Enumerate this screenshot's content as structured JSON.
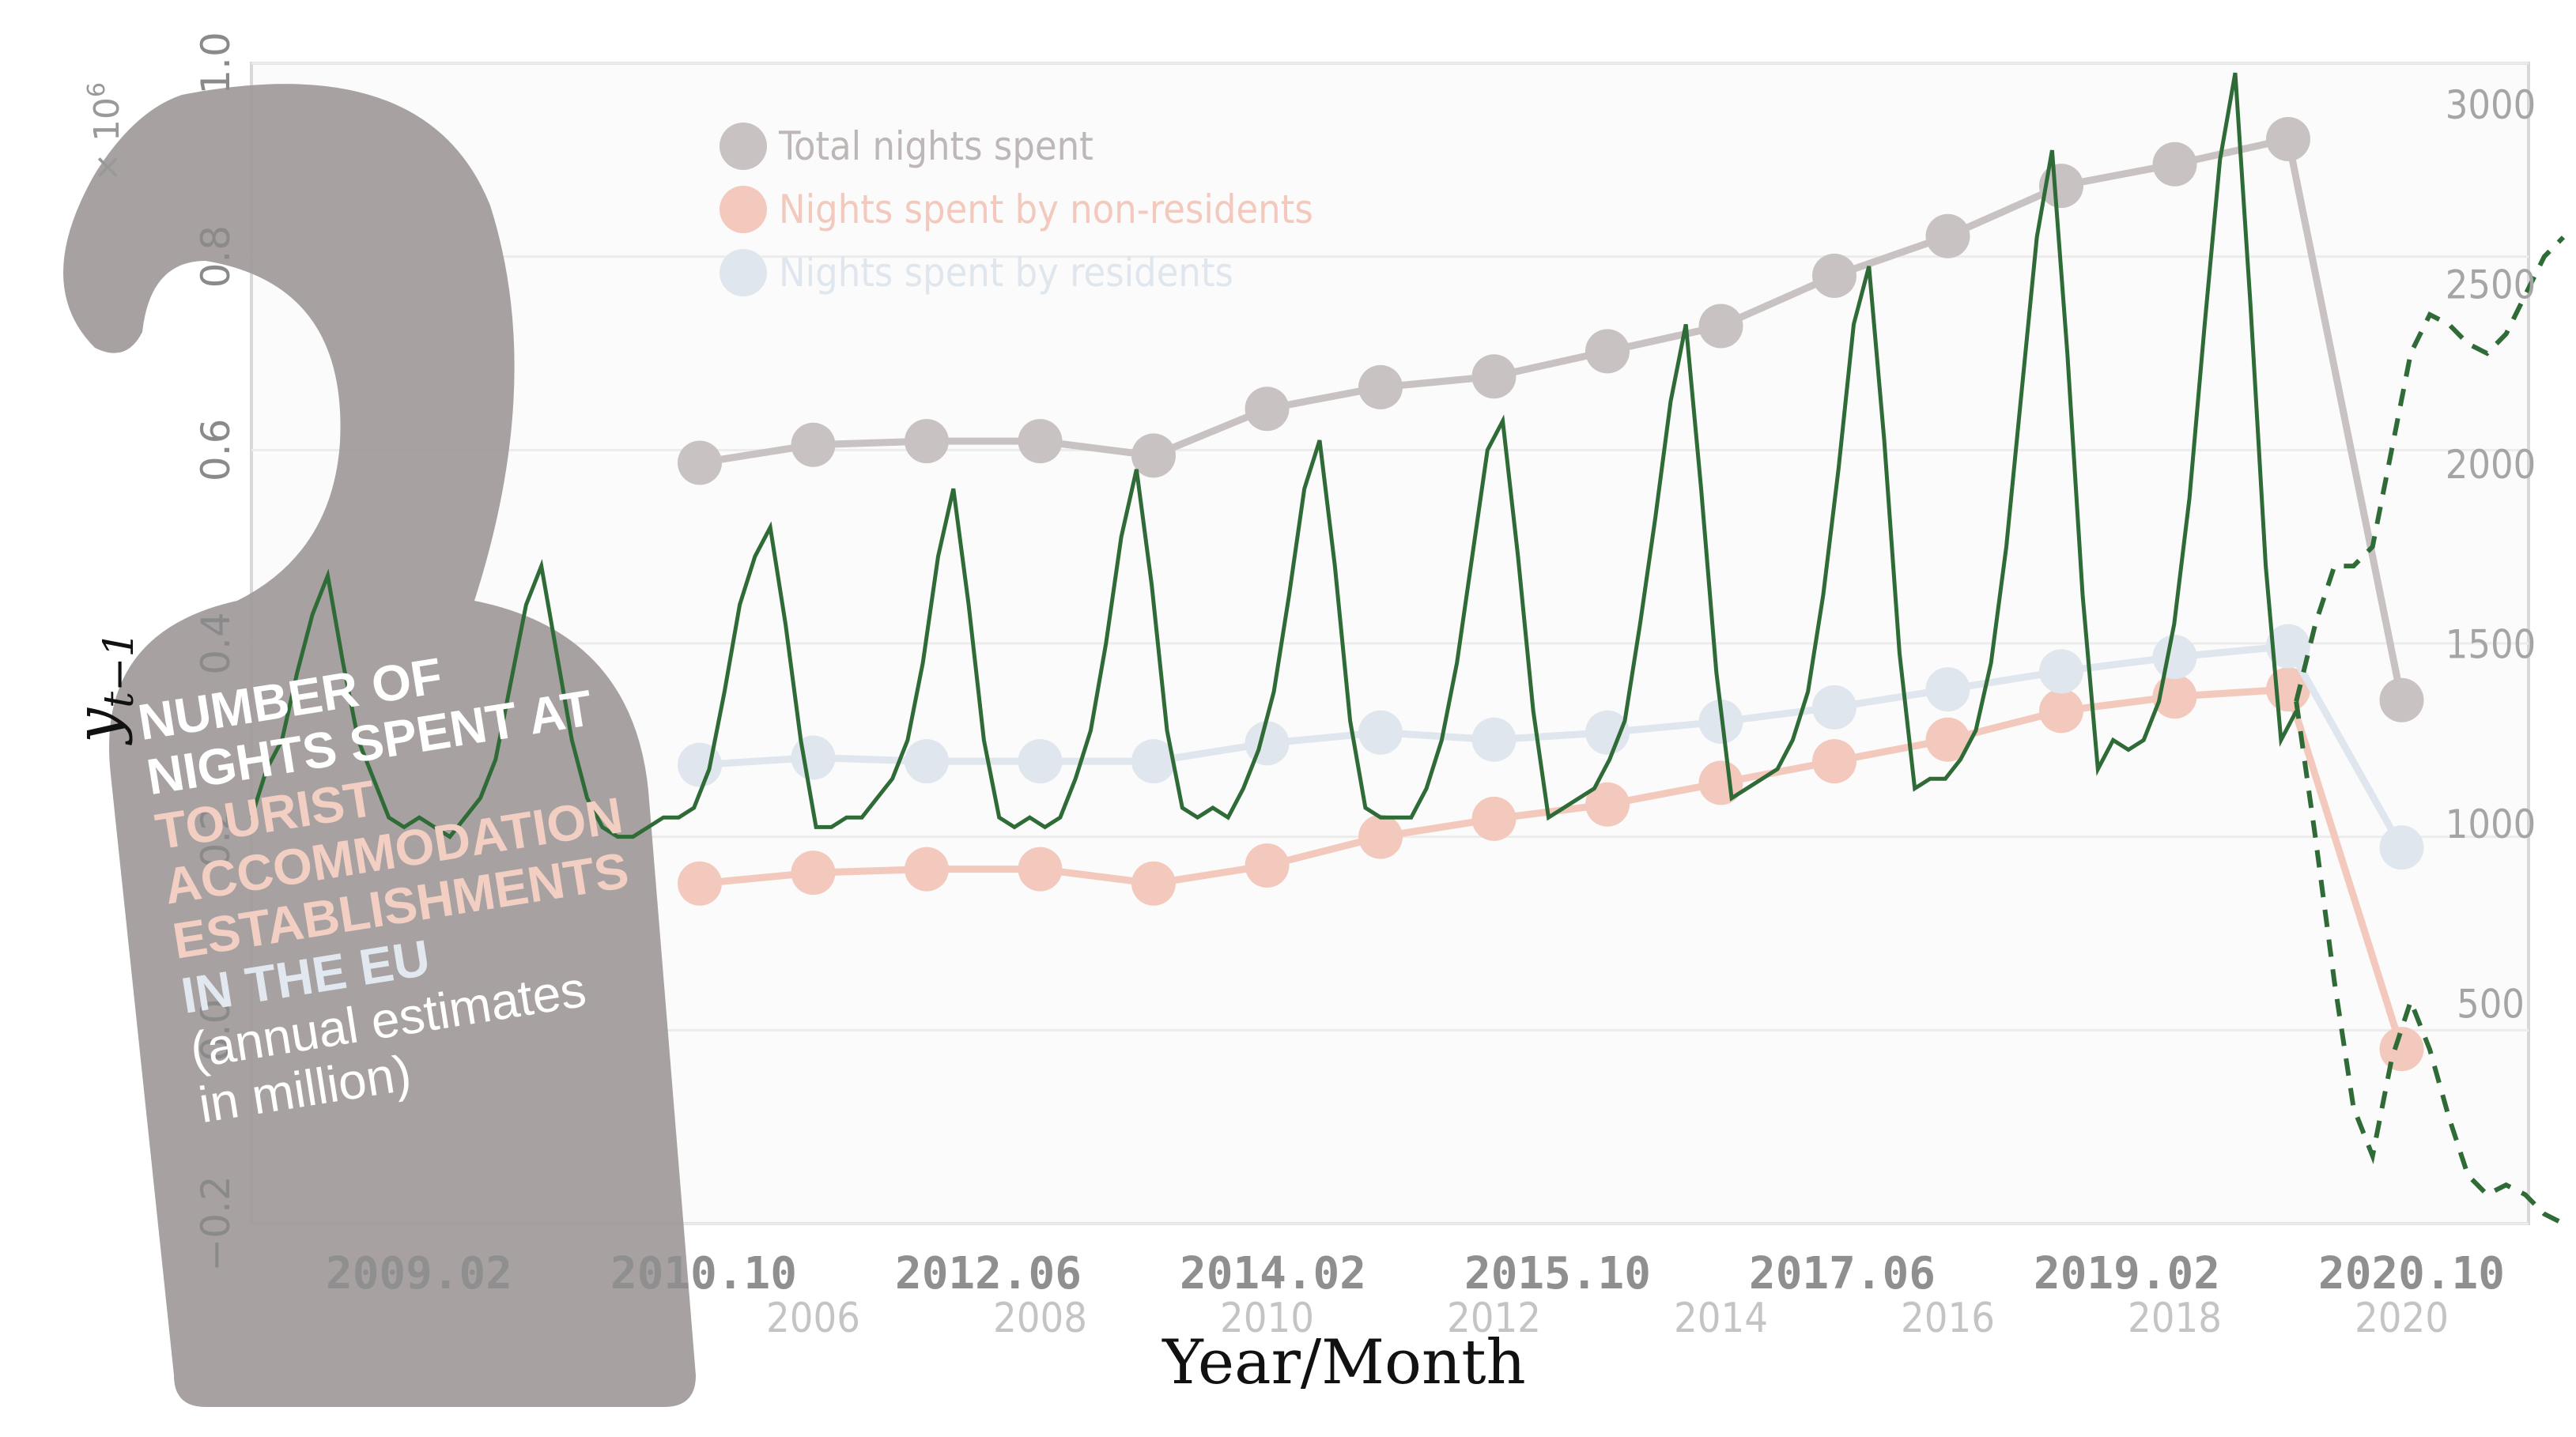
{
  "chart_data": {
    "type": "line",
    "xlabel": "Year/Month",
    "ylabel": "y",
    "ylabel_subscript": "t−1",
    "left_axis": {
      "exponent_label": "× 10",
      "exponent_power": "6",
      "ylim": [
        -0.2,
        1.0
      ],
      "ticks": [
        "−0.2",
        "0.0",
        "0.2",
        "0.4",
        "0.6",
        "0.8",
        "1.0"
      ]
    },
    "right_axis": {
      "ylim": [
        0,
        3000
      ],
      "ticks": [
        "500",
        "1000",
        "1500",
        "2000",
        "2500",
        "3000"
      ]
    },
    "bottom_ticks_monthly": [
      "2009.02",
      "2010.10",
      "2012.06",
      "2014.02",
      "2015.10",
      "2017.06",
      "2019.02",
      "2020.10"
    ],
    "bottom_ticks_years": [
      "2006",
      "2008",
      "2010",
      "2012",
      "2014",
      "2016",
      "2018",
      "2020"
    ],
    "legend": {
      "placement": "top-left",
      "items": [
        {
          "label": "Total nights spent",
          "color": "#c8c2c2"
        },
        {
          "label": "Nights spent by non-residents",
          "color": "#f4c9bd"
        },
        {
          "label": "Nights spent by residents",
          "color": "#dfe6ee"
        }
      ]
    },
    "annual_series": {
      "years": [
        2005,
        2006,
        2007,
        2008,
        2009,
        2010,
        2011,
        2012,
        2013,
        2014,
        2015,
        2016,
        2017,
        2018,
        2019,
        2020
      ],
      "series": [
        {
          "name": "Total nights spent",
          "color": "#c8c2c2",
          "values": [
            2010,
            2060,
            2070,
            2070,
            2030,
            2160,
            2220,
            2250,
            2320,
            2390,
            2530,
            2640,
            2780,
            2840,
            2910,
            1350
          ]
        },
        {
          "name": "Nights spent by non-residents",
          "color": "#f4c9bd",
          "values": [
            840,
            870,
            880,
            880,
            840,
            890,
            970,
            1020,
            1060,
            1120,
            1180,
            1240,
            1320,
            1360,
            1380,
            380
          ]
        },
        {
          "name": "Nights spent by residents",
          "color": "#dfe6ee",
          "values": [
            1170,
            1190,
            1180,
            1180,
            1180,
            1230,
            1260,
            1240,
            1260,
            1290,
            1330,
            1380,
            1430,
            1470,
            1500,
            940
          ]
        }
      ]
    },
    "monthly_series": {
      "name": "",
      "color": "#2f6b36",
      "start_month": "2008.01",
      "values": [
        0.22,
        0.27,
        0.3,
        0.37,
        0.43,
        0.47,
        0.38,
        0.3,
        0.26,
        0.22,
        0.21,
        0.22,
        0.21,
        0.2,
        0.22,
        0.24,
        0.28,
        0.36,
        0.44,
        0.48,
        0.39,
        0.3,
        0.24,
        0.21,
        0.2,
        0.2,
        0.21,
        0.22,
        0.22,
        0.23,
        0.27,
        0.35,
        0.44,
        0.49,
        0.52,
        0.42,
        0.3,
        0.21,
        0.21,
        0.22,
        0.22,
        0.24,
        0.26,
        0.3,
        0.38,
        0.49,
        0.56,
        0.44,
        0.3,
        0.22,
        0.21,
        0.22,
        0.21,
        0.22,
        0.26,
        0.31,
        0.4,
        0.51,
        0.58,
        0.46,
        0.31,
        0.23,
        0.22,
        0.23,
        0.22,
        0.25,
        0.29,
        0.35,
        0.45,
        0.56,
        0.61,
        0.48,
        0.32,
        0.23,
        0.22,
        0.22,
        0.22,
        0.25,
        0.3,
        0.38,
        0.49,
        0.6,
        0.63,
        0.49,
        0.33,
        0.22,
        0.23,
        0.24,
        0.25,
        0.28,
        0.32,
        0.42,
        0.53,
        0.65,
        0.73,
        0.56,
        0.37,
        0.24,
        0.25,
        0.26,
        0.27,
        0.3,
        0.35,
        0.45,
        0.58,
        0.73,
        0.79,
        0.61,
        0.39,
        0.25,
        0.26,
        0.26,
        0.28,
        0.31,
        0.38,
        0.5,
        0.66,
        0.82,
        0.91,
        0.7,
        0.45,
        0.27,
        0.3,
        0.29,
        0.3,
        0.34,
        0.42,
        0.55,
        0.73,
        0.9,
        0.99,
        0.75,
        0.48,
        0.3,
        0.33
      ]
    },
    "forecast_bands": {
      "color": "#2f6b36",
      "style": "dashed",
      "upper": [
        0.34,
        0.42,
        0.48,
        0.48,
        0.5,
        0.6,
        0.7,
        0.74,
        0.73,
        0.71,
        0.7,
        0.72,
        0.76,
        0.8,
        0.82
      ],
      "lower": [
        0.34,
        0.2,
        0.05,
        -0.08,
        -0.13,
        -0.03,
        0.03,
        -0.02,
        -0.09,
        -0.15,
        -0.17,
        -0.16,
        -0.17,
        -0.19,
        -0.2
      ]
    },
    "grid": true
  },
  "overlay": {
    "line1": "NUMBER OF",
    "line2": "NIGHTS SPENT AT",
    "line3": "TOURIST",
    "line4": "ACCOMMODATION",
    "line5": "ESTABLISHMENTS",
    "line6": "IN THE EU",
    "line7": "(annual estimates",
    "line8": "in million)"
  }
}
